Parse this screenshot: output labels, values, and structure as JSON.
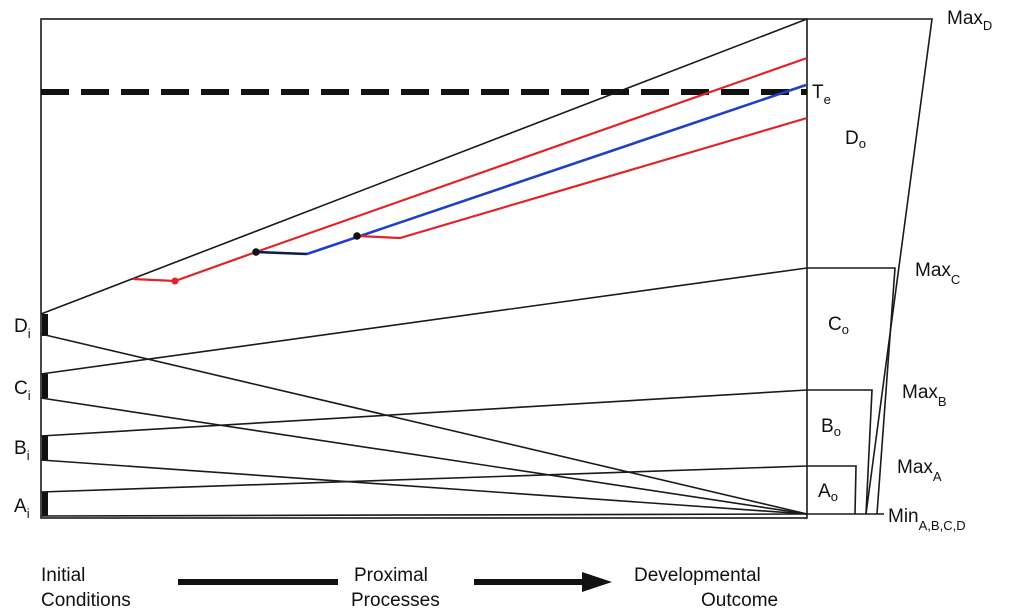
{
  "labels": {
    "max_d": "Max",
    "max_d_sub": "D",
    "te": "T",
    "te_sub": "e",
    "d_o": "D",
    "d_o_sub": "o",
    "max_c": "Max",
    "max_c_sub": "C",
    "c_o": "C",
    "c_o_sub": "o",
    "max_b": "Max",
    "max_b_sub": "B",
    "b_o": "B",
    "b_o_sub": "o",
    "max_a": "Max",
    "max_a_sub": "A",
    "a_o": "A",
    "a_o_sub": "o",
    "min": "Min",
    "min_sub": "A,B,C,D",
    "d_i": "D",
    "d_i_sub": "i",
    "c_i": "C",
    "c_i_sub": "i",
    "b_i": "B",
    "b_i_sub": "i",
    "a_i": "A",
    "a_i_sub": "i"
  },
  "bottom": {
    "initial_1": "Initial",
    "initial_2": "Conditions",
    "proximal_1": "Proximal",
    "proximal_2": "Processes",
    "outcome_1": "Developmental",
    "outcome_2": "Outcome"
  },
  "colors": {
    "line": "#1a1a1a",
    "red": "#e0242a",
    "blue": "#1f3fc4",
    "dark_navy": "#0d1a4a"
  }
}
